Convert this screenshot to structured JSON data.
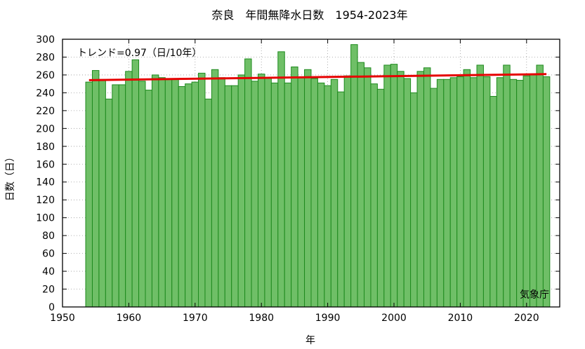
{
  "chart_data": {
    "type": "bar",
    "title": "奈良　年間無降水日数　1954-2023年",
    "xlabel": "年",
    "ylabel": "日数（日）",
    "trend_label": "トレンド=0.97（日/10年）",
    "source": "気象庁",
    "xlim": [
      1950,
      2025
    ],
    "ylim": [
      0,
      300
    ],
    "xticks": [
      1950,
      1960,
      1970,
      1980,
      1990,
      2000,
      2010,
      2020
    ],
    "yticks": [
      0,
      20,
      40,
      60,
      80,
      100,
      120,
      140,
      160,
      180,
      200,
      220,
      240,
      260,
      280,
      300
    ],
    "grid": true,
    "years": [
      1954,
      1955,
      1956,
      1957,
      1958,
      1959,
      1960,
      1961,
      1962,
      1963,
      1964,
      1965,
      1966,
      1967,
      1968,
      1969,
      1970,
      1971,
      1972,
      1973,
      1974,
      1975,
      1976,
      1977,
      1978,
      1979,
      1980,
      1981,
      1982,
      1983,
      1984,
      1985,
      1986,
      1987,
      1988,
      1989,
      1990,
      1991,
      1992,
      1993,
      1994,
      1995,
      1996,
      1997,
      1998,
      1999,
      2000,
      2001,
      2002,
      2003,
      2004,
      2005,
      2006,
      2007,
      2008,
      2009,
      2010,
      2011,
      2012,
      2013,
      2014,
      2015,
      2016,
      2017,
      2018,
      2019,
      2020,
      2021,
      2022,
      2023
    ],
    "values": [
      252,
      265,
      255,
      233,
      249,
      249,
      264,
      277,
      253,
      243,
      260,
      257,
      255,
      255,
      247,
      250,
      252,
      262,
      233,
      266,
      257,
      248,
      248,
      260,
      278,
      253,
      261,
      257,
      251,
      286,
      251,
      269,
      258,
      266,
      256,
      251,
      248,
      255,
      241,
      259,
      294,
      274,
      268,
      250,
      244,
      271,
      272,
      264,
      256,
      240,
      264,
      268,
      245,
      255,
      255,
      257,
      258,
      266,
      257,
      271,
      258,
      236,
      257,
      271,
      255,
      254,
      259,
      260,
      271,
      258
    ],
    "trend": {
      "start_year": 1954,
      "end_year": 2023,
      "start_value": 254.2,
      "end_value": 260.9
    },
    "colors": {
      "bar_fill": "#6fbf67",
      "bar_stroke": "#1e8a1e",
      "trend_line": "#e60000"
    }
  }
}
